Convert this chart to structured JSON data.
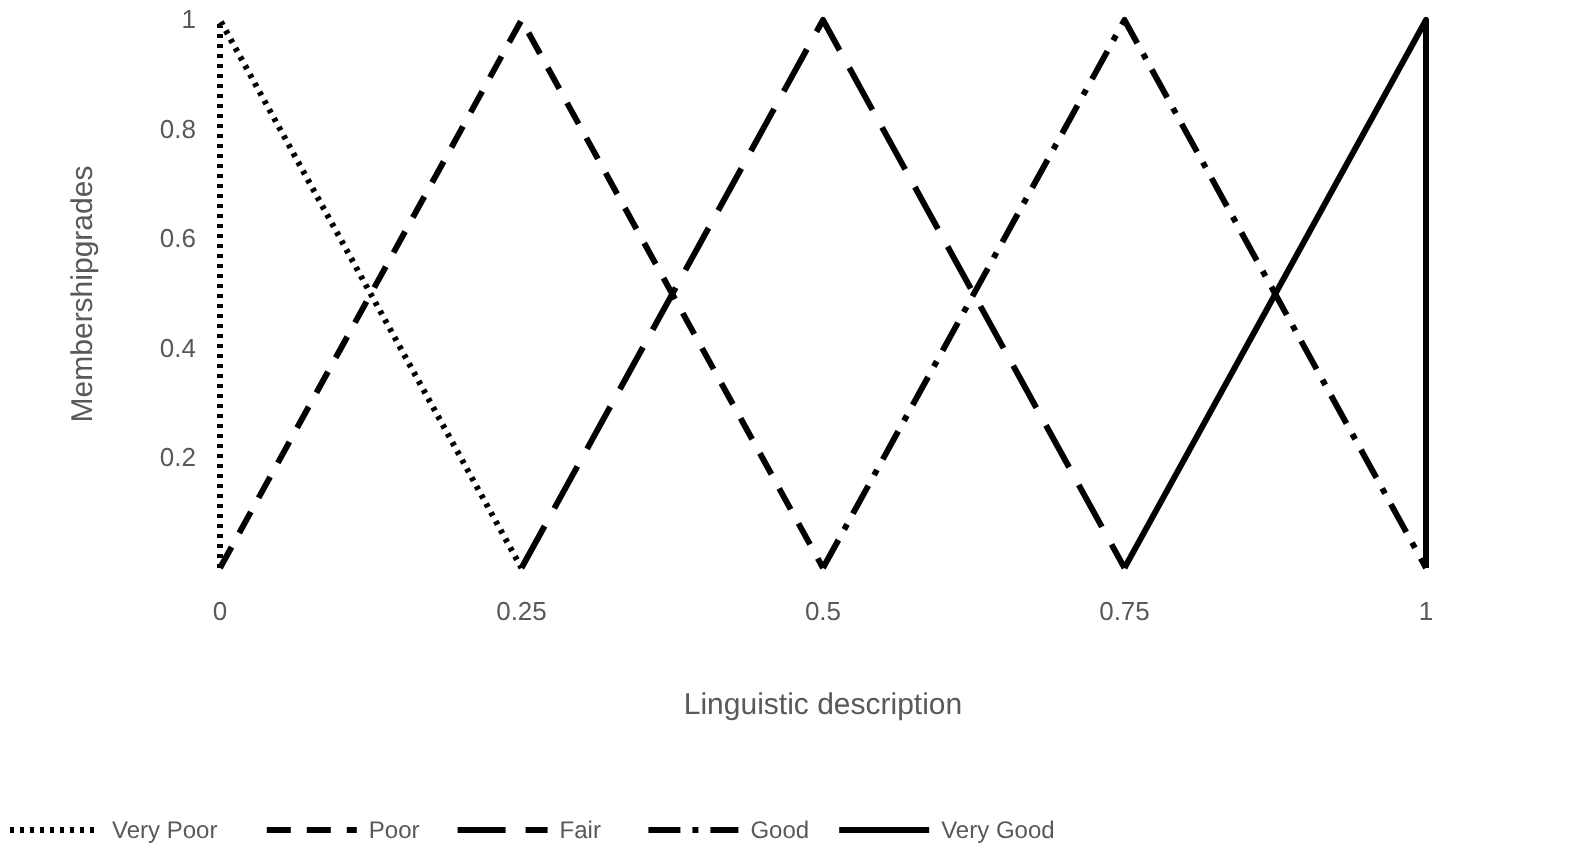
{
  "chart_data": {
    "type": "line",
    "xlabel": "Linguistic description",
    "ylabel": "Membershipgrades",
    "xlim": [
      0,
      1
    ],
    "xticks": [
      0,
      0.25,
      0.5,
      0.75,
      1
    ],
    "ylim": [
      0,
      1
    ],
    "yticks": [
      0.2,
      0.4,
      0.6,
      0.8,
      1
    ],
    "grid": false,
    "legend": "bottom",
    "series": [
      {
        "name": "Very Poor",
        "color": "#000000",
        "line_style": "dotted",
        "x": [
          0,
          0,
          0.25
        ],
        "values": [
          0,
          1,
          0
        ]
      },
      {
        "name": "Poor",
        "color": "#000000",
        "line_style": "dashed",
        "x": [
          0,
          0.25,
          0.5
        ],
        "values": [
          0,
          1,
          0
        ]
      },
      {
        "name": "Fair",
        "color": "#000000",
        "line_style": "longdash",
        "x": [
          0.25,
          0.5,
          0.75
        ],
        "values": [
          0,
          1,
          0
        ]
      },
      {
        "name": "Good",
        "color": "#000000",
        "line_style": "dashdot",
        "x": [
          0.5,
          0.75,
          1
        ],
        "values": [
          0,
          1,
          0
        ]
      },
      {
        "name": "Very Good",
        "color": "#000000",
        "line_style": "solid",
        "x": [
          0.75,
          1,
          1
        ],
        "values": [
          0,
          1,
          0
        ]
      }
    ]
  }
}
